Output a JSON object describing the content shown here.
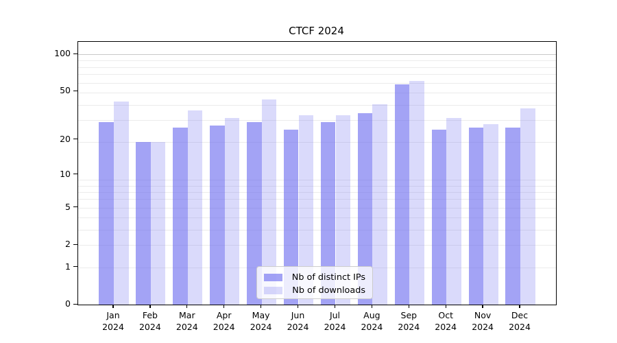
{
  "chart_data": {
    "type": "bar",
    "title": "CTCF 2024",
    "categories": [
      "Jan",
      "Feb",
      "Mar",
      "Apr",
      "May",
      "Jun",
      "Jul",
      "Aug",
      "Sep",
      "Oct",
      "Nov",
      "Dec"
    ],
    "x_axis": {
      "year_line": "2024"
    },
    "series": [
      {
        "name": "Nb of distinct IPs",
        "color": "rgba(102,102,238,0.6)",
        "values": [
          28,
          19,
          25,
          26,
          28,
          24,
          28,
          33,
          57,
          24,
          25,
          25
        ]
      },
      {
        "name": "Nb of downloads",
        "color": "rgba(102,102,238,0.24)",
        "values": [
          41,
          19,
          35,
          30,
          43,
          32,
          32,
          39,
          61,
          30,
          27,
          36
        ]
      }
    ],
    "y_axis": {
      "scale": "log1p",
      "ticks": [
        0,
        1,
        2,
        5,
        10,
        20,
        50,
        100
      ],
      "ylim": [
        0,
        127
      ],
      "grid_minor": [
        1,
        2,
        3,
        4,
        5,
        6,
        7,
        8,
        9,
        19,
        29,
        39,
        49,
        59,
        69,
        79,
        89
      ],
      "grid_major": [
        100
      ]
    },
    "legend": {
      "position": "lower center"
    },
    "grid": "on"
  }
}
